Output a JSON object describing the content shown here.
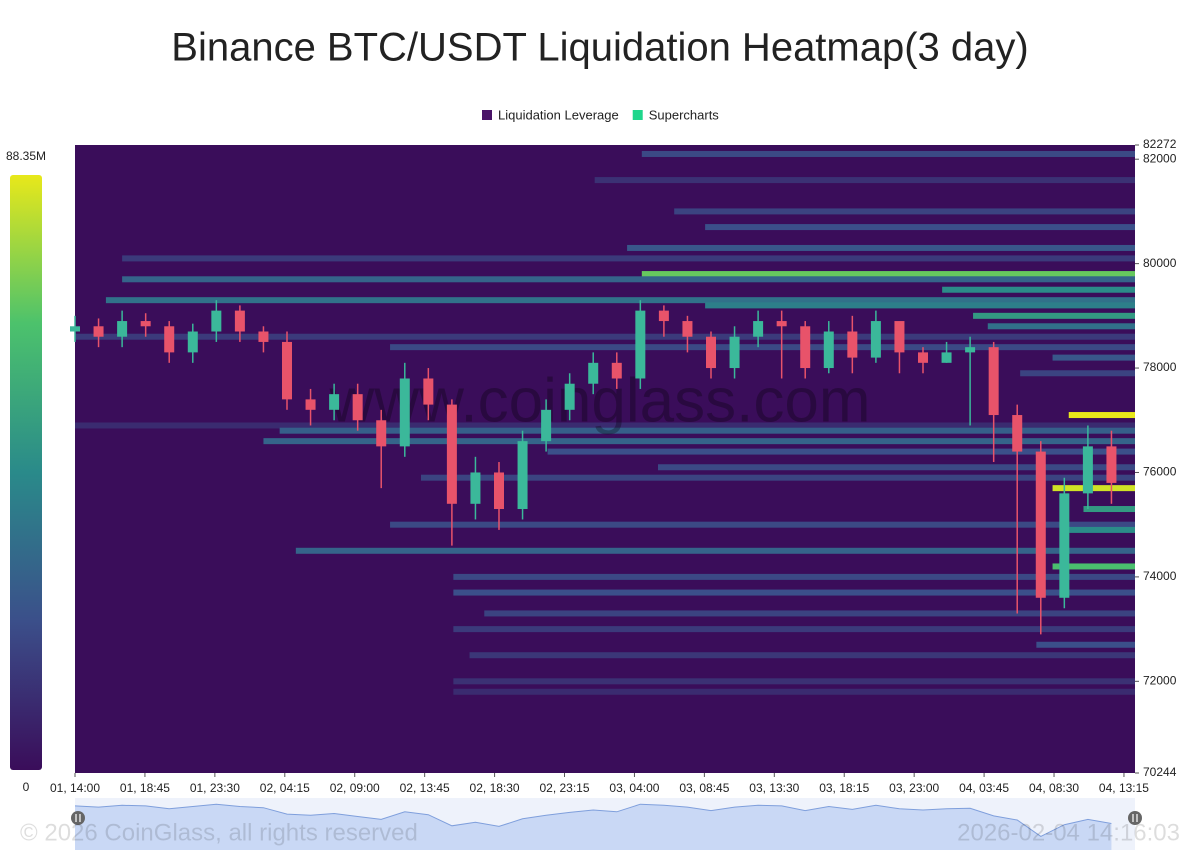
{
  "chart_data": {
    "type": "heatmap-candlestick",
    "title": "Binance BTC/USDT Liquidation Heatmap(3 day)",
    "legend": [
      {
        "name": "Liquidation Leverage",
        "color": "#4a1468"
      },
      {
        "name": "Supercharts",
        "color": "#1fd68c"
      }
    ],
    "watermark": "www.coinglass.com",
    "copyright": "© 2026 CoinGlass, all rights reserved",
    "timestamp": "2026-02-04 14:16:03",
    "colorscale": [
      "#3a0d5a",
      "#3b4f8a",
      "#2a8a8a",
      "#4cc26c",
      "#e8e81a"
    ],
    "clim": [
      0,
      88.35
    ],
    "cticks": [
      {
        "value": 88.35,
        "label": "88.35M"
      },
      0
    ],
    "xlim": [
      0,
      72
    ],
    "xticks": [
      {
        "value": 0,
        "label": "01, 14:00"
      },
      {
        "value": 4.75,
        "label": "01, 18:45"
      },
      {
        "value": 9.5,
        "label": "01, 23:30"
      },
      {
        "value": 14.25,
        "label": "02, 04:15"
      },
      {
        "value": 19,
        "label": "02, 09:00"
      },
      {
        "value": 23.75,
        "label": "02, 13:45"
      },
      {
        "value": 28.5,
        "label": "02, 18:30"
      },
      {
        "value": 33.25,
        "label": "02, 23:15"
      },
      {
        "value": 38,
        "label": "03, 04:00"
      },
      {
        "value": 42.75,
        "label": "03, 08:45"
      },
      {
        "value": 47.5,
        "label": "03, 13:30"
      },
      {
        "value": 52.25,
        "label": "03, 18:15"
      },
      {
        "value": 57,
        "label": "03, 23:00"
      },
      {
        "value": 61.75,
        "label": "04, 03:45"
      },
      {
        "value": 66.5,
        "label": "04, 08:30"
      },
      {
        "value": 71.25,
        "label": "04, 13:15"
      }
    ],
    "ylim": [
      70244,
      82272
    ],
    "yticks": [
      70244,
      72000,
      74000,
      76000,
      78000,
      80000,
      82000,
      82272
    ],
    "up_color": "#3bb89a",
    "down_color": "#e8536a",
    "bands": {
      "price": [
        82100,
        81600,
        81000,
        80700,
        80300,
        80100,
        79800,
        79700,
        79500,
        79300,
        79200,
        79000,
        78800,
        78600,
        78400,
        78200,
        77900,
        77100,
        76900,
        76800,
        76600,
        76400,
        76100,
        75900,
        75700,
        75300,
        75000,
        74900,
        74500,
        74200,
        74000,
        73700,
        73300,
        73000,
        72700,
        72500,
        72000,
        71800
      ],
      "start": [
        38.5,
        35.3,
        40.7,
        42.8,
        37.5,
        3.2,
        38.5,
        3.2,
        58.9,
        2.1,
        42.8,
        61,
        62,
        0,
        21.4,
        66.4,
        64.2,
        67.5,
        0,
        13.9,
        12.8,
        32.1,
        39.6,
        23.5,
        66.4,
        68.5,
        21.4,
        67.5,
        15,
        66.4,
        25.7,
        25.7,
        27.8,
        25.7,
        65.3,
        26.8,
        25.7,
        25.7
      ],
      "value": [
        20,
        12,
        18,
        22,
        25,
        15,
        70,
        30,
        45,
        35,
        40,
        50,
        35,
        15,
        20,
        25,
        18,
        88.35,
        10,
        28,
        30,
        22,
        20,
        18,
        85,
        50,
        20,
        45,
        30,
        65,
        20,
        22,
        18,
        15,
        22,
        14,
        12,
        10
      ]
    },
    "candles": {
      "x": [
        0,
        1.6,
        3.2,
        4.8,
        6.4,
        8,
        9.6,
        11.2,
        12.8,
        14.4,
        16,
        17.6,
        19.2,
        20.8,
        22.4,
        24,
        25.6,
        27.2,
        28.8,
        30.4,
        32,
        33.6,
        35.2,
        36.8,
        38.4,
        40,
        41.6,
        43.2,
        44.8,
        46.4,
        48,
        49.6,
        51.2,
        52.8,
        54.4,
        56,
        57.6,
        59.2,
        60.8,
        62.4,
        64,
        65.6,
        67.2,
        68.8,
        70.4
      ],
      "open": [
        78700,
        78800,
        78600,
        78900,
        78800,
        78300,
        78700,
        79100,
        78700,
        78500,
        77400,
        77200,
        77500,
        77000,
        76500,
        77800,
        77300,
        75400,
        76000,
        75300,
        76600,
        77200,
        77700,
        78100,
        77800,
        79100,
        78900,
        78600,
        78000,
        78600,
        78900,
        78800,
        78000,
        78700,
        78200,
        78900,
        78300,
        78100,
        78300,
        78400,
        77100,
        76400,
        73600,
        75600,
        76500
      ],
      "high": [
        79000,
        78950,
        79100,
        79050,
        78900,
        78850,
        79300,
        79200,
        78800,
        78700,
        77600,
        77700,
        77700,
        77200,
        78100,
        78000,
        77400,
        76300,
        76200,
        76800,
        77400,
        77900,
        78300,
        78300,
        79300,
        79200,
        79000,
        78700,
        78800,
        79100,
        79100,
        78900,
        78900,
        79000,
        79100,
        78500,
        78400,
        78500,
        78600,
        78500,
        77300,
        76600,
        75900,
        76900,
        76800
      ],
      "low": [
        78500,
        78400,
        78400,
        78600,
        78100,
        78100,
        78500,
        78500,
        78300,
        77200,
        76900,
        77000,
        76800,
        75700,
        76300,
        77000,
        74600,
        75100,
        74900,
        75100,
        76400,
        77000,
        77500,
        77600,
        77600,
        78600,
        78300,
        77800,
        77800,
        78400,
        77800,
        77800,
        77900,
        77900,
        78100,
        77900,
        77900,
        78100,
        76900,
        76200,
        73300,
        72900,
        73400,
        75300,
        75400
      ],
      "close": [
        78800,
        78600,
        78900,
        78800,
        78300,
        78700,
        79100,
        78700,
        78500,
        77400,
        77200,
        77500,
        77000,
        76500,
        77800,
        77300,
        75400,
        76000,
        75300,
        76600,
        77200,
        77700,
        78100,
        77800,
        79100,
        78900,
        78600,
        78000,
        78600,
        78900,
        78800,
        78000,
        78700,
        78200,
        78900,
        78300,
        78100,
        78300,
        78400,
        77100,
        76400,
        73600,
        75600,
        76500,
        75800
      ]
    }
  }
}
